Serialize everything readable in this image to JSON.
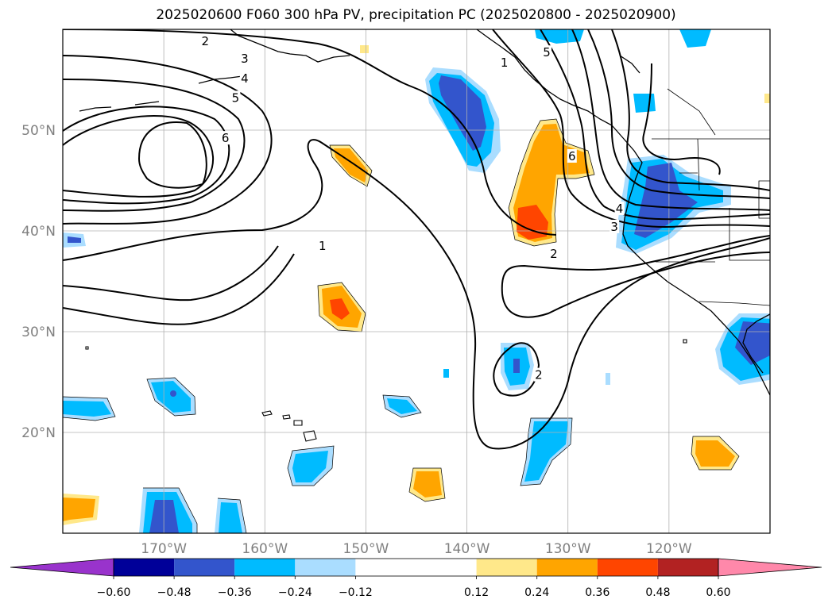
{
  "title": "2025020600 F060 300 hPa PV, precipitation PC (2025020800 - 2025020900)",
  "map": {
    "lon_range": [
      -180,
      -110
    ],
    "lat_range": [
      10,
      60
    ],
    "lon_ticks": [
      {
        "lon": -170,
        "label": "170°W"
      },
      {
        "lon": -160,
        "label": "160°W"
      },
      {
        "lon": -150,
        "label": "150°W"
      },
      {
        "lon": -140,
        "label": "140°W"
      },
      {
        "lon": -130,
        "label": "130°W"
      },
      {
        "lon": -120,
        "label": "120°W"
      }
    ],
    "lat_ticks": [
      {
        "lat": 50,
        "label": "50°N"
      },
      {
        "lat": 40,
        "label": "40°N"
      },
      {
        "lat": 30,
        "label": "30°N"
      },
      {
        "lat": 20,
        "label": "20°N"
      }
    ],
    "gridlines": true,
    "contour_labels": [
      {
        "text": "2",
        "lon": -165.9,
        "lat": 58.8
      },
      {
        "text": "3",
        "lon": -162.0,
        "lat": 57.1
      },
      {
        "text": "4",
        "lon": -162.0,
        "lat": 55.1
      },
      {
        "text": "5",
        "lon": -162.9,
        "lat": 53.2
      },
      {
        "text": "6",
        "lon": -163.9,
        "lat": 49.2
      },
      {
        "text": "1",
        "lon": -154.3,
        "lat": 38.5
      },
      {
        "text": "1",
        "lon": -136.3,
        "lat": 56.7
      },
      {
        "text": "5",
        "lon": -132.1,
        "lat": 57.7
      },
      {
        "text": "6",
        "lon": -129.6,
        "lat": 47.4
      },
      {
        "text": "4",
        "lon": -124.9,
        "lat": 42.2
      },
      {
        "text": "3",
        "lon": -125.4,
        "lat": 40.4
      },
      {
        "text": "2",
        "lon": -131.4,
        "lat": 37.7
      },
      {
        "text": "2",
        "lon": -132.9,
        "lat": 25.7
      }
    ]
  },
  "colorbar": {
    "boundaries": [
      -0.72,
      -0.6,
      -0.48,
      -0.36,
      -0.24,
      -0.12,
      0.12,
      0.24,
      0.36,
      0.48,
      0.6,
      0.72
    ],
    "colors": [
      "#9933cc",
      "#000099",
      "#3355cc",
      "#00bbff",
      "#aaddff",
      "#ffffff",
      "#ffe88a",
      "#ffa500",
      "#ff4500",
      "#b22222",
      "#ff88aa"
    ],
    "tick_labels": [
      "−0.60",
      "−0.48",
      "−0.36",
      "−0.24",
      "−0.12",
      "0.12",
      "0.24",
      "0.36",
      "0.48",
      "0.60"
    ],
    "extend": "both"
  }
}
